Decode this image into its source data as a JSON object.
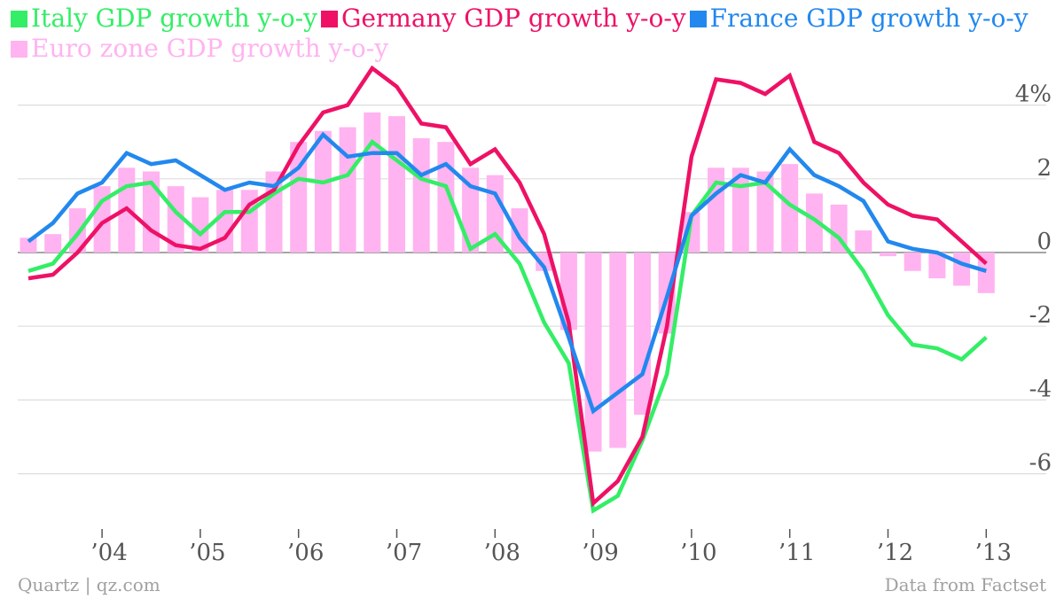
{
  "chart_data": {
    "type": "line",
    "title": "",
    "xlabel": "",
    "ylabel": "",
    "ylim": [
      -7.5,
      5.0
    ],
    "y_ticks": [
      4,
      2,
      0,
      -2,
      -4,
      -6
    ],
    "y_tick_labels": [
      "4%",
      "2",
      "0",
      "-2",
      "-4",
      "-6"
    ],
    "x_tick_labels": [
      "’04",
      "’05",
      "’06",
      "’07",
      "’08",
      "’09",
      "’10",
      "’11",
      "’12",
      "’13"
    ],
    "x_tick_years": [
      2004,
      2005,
      2006,
      2007,
      2008,
      2009,
      2010,
      2011,
      2012,
      2013
    ],
    "x": [
      "2003 Q2",
      "2003 Q3",
      "2003 Q4",
      "2004 Q1",
      "2004 Q2",
      "2004 Q3",
      "2004 Q4",
      "2005 Q1",
      "2005 Q2",
      "2005 Q3",
      "2005 Q4",
      "2006 Q1",
      "2006 Q2",
      "2006 Q3",
      "2006 Q4",
      "2007 Q1",
      "2007 Q2",
      "2007 Q3",
      "2007 Q4",
      "2008 Q1",
      "2008 Q2",
      "2008 Q3",
      "2008 Q4",
      "2009 Q1",
      "2009 Q2",
      "2009 Q3",
      "2009 Q4",
      "2010 Q1",
      "2010 Q2",
      "2010 Q3",
      "2010 Q4",
      "2011 Q1",
      "2011 Q2",
      "2011 Q3",
      "2011 Q4",
      "2012 Q1",
      "2012 Q2",
      "2012 Q3",
      "2012 Q4",
      "2013 Q1"
    ],
    "grid": true,
    "legend_position": "top-left",
    "series": [
      {
        "name": "Italy GDP growth y-o-y",
        "type": "line",
        "color": "#33ee66",
        "values": [
          -0.5,
          -0.3,
          0.5,
          1.4,
          1.8,
          1.9,
          1.1,
          0.5,
          1.1,
          1.1,
          1.6,
          2.0,
          1.9,
          2.1,
          3.0,
          2.5,
          2.0,
          1.8,
          0.1,
          0.5,
          -0.3,
          -1.9,
          -3.0,
          -7.0,
          -6.6,
          -5.1,
          -3.3,
          1.0,
          1.9,
          1.8,
          1.9,
          1.3,
          0.9,
          0.4,
          -0.5,
          -1.7,
          -2.5,
          -2.6,
          -2.9,
          -2.3
        ]
      },
      {
        "name": "Germany GDP growth y-o-y",
        "type": "line",
        "color": "#ee1166",
        "values": [
          -0.7,
          -0.6,
          0.0,
          0.8,
          1.2,
          0.6,
          0.2,
          0.1,
          0.4,
          1.3,
          1.7,
          2.9,
          3.8,
          4.0,
          5.0,
          4.5,
          3.5,
          3.4,
          2.4,
          2.8,
          1.9,
          0.5,
          -1.9,
          -6.8,
          -6.2,
          -5.0,
          -2.0,
          2.6,
          4.7,
          4.6,
          4.3,
          4.8,
          3.0,
          2.7,
          1.9,
          1.3,
          1.0,
          0.9,
          0.3,
          -0.3
        ]
      },
      {
        "name": "France GDP growth y-o-y",
        "type": "line",
        "color": "#2288ee",
        "values": [
          0.3,
          0.8,
          1.6,
          1.9,
          2.7,
          2.4,
          2.5,
          2.1,
          1.7,
          1.9,
          1.8,
          2.3,
          3.2,
          2.6,
          2.7,
          2.7,
          2.1,
          2.4,
          1.8,
          1.6,
          0.4,
          -0.4,
          -2.3,
          -4.3,
          -3.8,
          -3.3,
          -1.2,
          1.0,
          1.6,
          2.1,
          1.9,
          2.8,
          2.1,
          1.8,
          1.4,
          0.3,
          0.1,
          0.0,
          -0.3,
          -0.5
        ]
      },
      {
        "name": "Euro zone GDP growth y-o-y",
        "type": "bar",
        "color": "#ffb3f0",
        "values": [
          0.4,
          0.5,
          1.2,
          1.8,
          2.3,
          2.2,
          1.8,
          1.5,
          1.7,
          1.7,
          2.2,
          3.0,
          3.3,
          3.4,
          3.8,
          3.7,
          3.1,
          3.0,
          2.3,
          2.1,
          1.2,
          -0.5,
          -2.1,
          -5.4,
          -5.3,
          -4.4,
          -2.2,
          1.1,
          2.3,
          2.3,
          2.2,
          2.4,
          1.6,
          1.3,
          0.6,
          -0.1,
          -0.5,
          -0.7,
          -0.9,
          -1.1
        ]
      }
    ]
  },
  "footer": {
    "left": "Quartz | qz.com",
    "right": "Data from Factset"
  }
}
